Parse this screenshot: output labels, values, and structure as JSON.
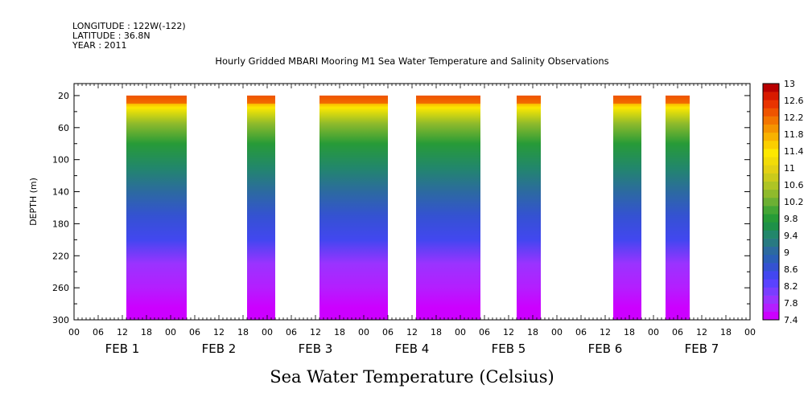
{
  "meta": {
    "longitude": "LONGITUDE : 122W(-122)",
    "latitude": "LATITUDE : 36.8N",
    "year": "YEAR : 2011"
  },
  "chart_data": {
    "type": "heatmap",
    "title": "Hourly Gridded MBARI Mooring M1 Sea Water Temperature and Salinity Observations",
    "xlabel": "Sea Water Temperature (Celsius)",
    "ylabel": "DEPTH (m)",
    "x_range": [
      "2011-02-01T00:00",
      "2011-02-08T00:00"
    ],
    "y_range": [
      300,
      5
    ],
    "y_ticks": [
      20,
      60,
      100,
      140,
      180,
      220,
      260,
      300
    ],
    "x_hour_ticks": [
      "00",
      "06",
      "12",
      "18",
      "00",
      "06",
      "12",
      "18",
      "00",
      "06",
      "12",
      "18",
      "00",
      "06",
      "12",
      "18",
      "00",
      "06",
      "12",
      "18",
      "00",
      "06",
      "12",
      "18",
      "00",
      "06",
      "12",
      "18",
      "00"
    ],
    "day_labels": [
      "FEB  1",
      "FEB  2",
      "FEB  3",
      "FEB  4",
      "FEB  5",
      "FEB  6",
      "FEB  7"
    ],
    "colorbar": {
      "min": 7.4,
      "max": 13,
      "step": 0.2,
      "labels": [
        "13",
        "12.6",
        "12.2",
        "11.8",
        "11.4",
        "11",
        "10.6",
        "10.2",
        "9.8",
        "9.4",
        "9",
        "8.6",
        "8.2",
        "7.8",
        "7.4"
      ],
      "colors": [
        "#cc00ff",
        "#b41eff",
        "#9a33ff",
        "#7a3dff",
        "#5a42ff",
        "#4247f0",
        "#3452d2",
        "#2b5fb8",
        "#2c6aa0",
        "#287a82",
        "#22876b",
        "#1e9148",
        "#279b37",
        "#44a635",
        "#6cb033",
        "#8fba2c",
        "#aec425",
        "#cacb1c",
        "#e3d114",
        "#f2dc08",
        "#fde800",
        "#fbcf00",
        "#f8b200",
        "#f59400",
        "#f37500",
        "#ef5400",
        "#e93400",
        "#d81a00",
        "#b80000"
      ]
    },
    "observation_windows_hours": [
      [
        13,
        28
      ],
      [
        43,
        50
      ],
      [
        61,
        78
      ],
      [
        85,
        101
      ],
      [
        110,
        116
      ],
      [
        134,
        141
      ],
      [
        147,
        153
      ]
    ]
  }
}
